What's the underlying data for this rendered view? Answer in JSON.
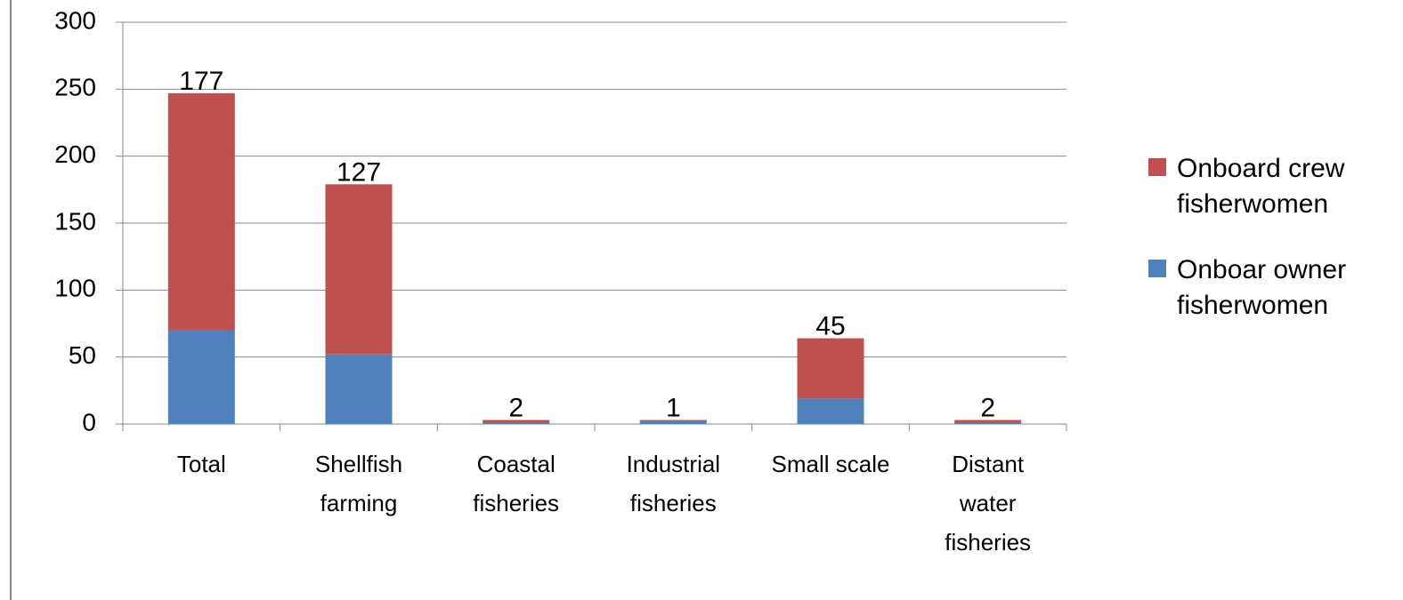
{
  "chart_data": {
    "type": "stacked_bar",
    "categories": [
      "Total",
      "Shellfish farming",
      "Coastal fisheries",
      "Industrial fisheries",
      "Small scale",
      "Distant water fisheries"
    ],
    "series": [
      {
        "name": "Onboar owner fisherwomen",
        "color": "#4f81bd",
        "values": [
          70,
          52,
          1,
          2,
          19,
          1
        ]
      },
      {
        "name": "Onboard crew fisherwomen",
        "color": "#c0504d",
        "values": [
          177,
          127,
          2,
          1,
          45,
          2
        ]
      }
    ],
    "labeled_series": 1,
    "ylim": [
      0,
      300
    ],
    "yticks": [
      0,
      50,
      100,
      150,
      200,
      250,
      300
    ],
    "grid": true,
    "legend": "right"
  }
}
